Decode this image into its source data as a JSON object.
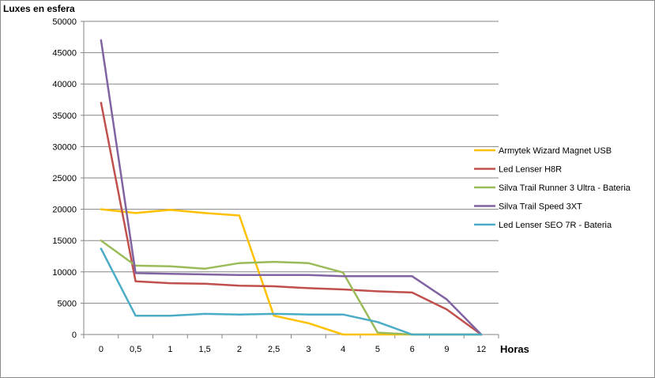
{
  "chart_data": {
    "type": "line",
    "ylabel": "Luxes en esfera",
    "xlabel": "Horas",
    "categories": [
      "0",
      "0,5",
      "1",
      "1,5",
      "2",
      "2,5",
      "3",
      "4",
      "5",
      "6",
      "9",
      "12"
    ],
    "ylim": [
      0,
      50000
    ],
    "yticks": [
      0,
      5000,
      10000,
      15000,
      20000,
      25000,
      30000,
      35000,
      40000,
      45000,
      50000
    ],
    "grid": "horizontal",
    "legend_position": "right",
    "series": [
      {
        "name": "Armytek Wizard Magnet USB",
        "color": "#FFC000",
        "values": [
          20000,
          19400,
          19900,
          19400,
          19000,
          3000,
          1800,
          0,
          0,
          0,
          0,
          0
        ]
      },
      {
        "name": "Led Lenser H8R",
        "color": "#C0504D",
        "values": [
          37000,
          8500,
          8200,
          8100,
          7800,
          7700,
          7400,
          7200,
          6900,
          6700,
          4000,
          0
        ]
      },
      {
        "name": "Silva Trail Runner 3 Ultra - Bateria",
        "color": "#9BBB59",
        "values": [
          15000,
          11000,
          10900,
          10500,
          11400,
          11600,
          11400,
          9900,
          300,
          0,
          0,
          0
        ]
      },
      {
        "name": "Silva Trail Speed 3XT",
        "color": "#8064A2",
        "values": [
          47000,
          9800,
          9700,
          9600,
          9500,
          9500,
          9500,
          9300,
          9300,
          9300,
          5600,
          0
        ]
      },
      {
        "name": "Led Lenser SEO 7R - Bateria",
        "color": "#4BACC6",
        "values": [
          13700,
          3000,
          3000,
          3300,
          3200,
          3300,
          3200,
          3200,
          2000,
          0,
          0,
          0
        ]
      }
    ]
  }
}
